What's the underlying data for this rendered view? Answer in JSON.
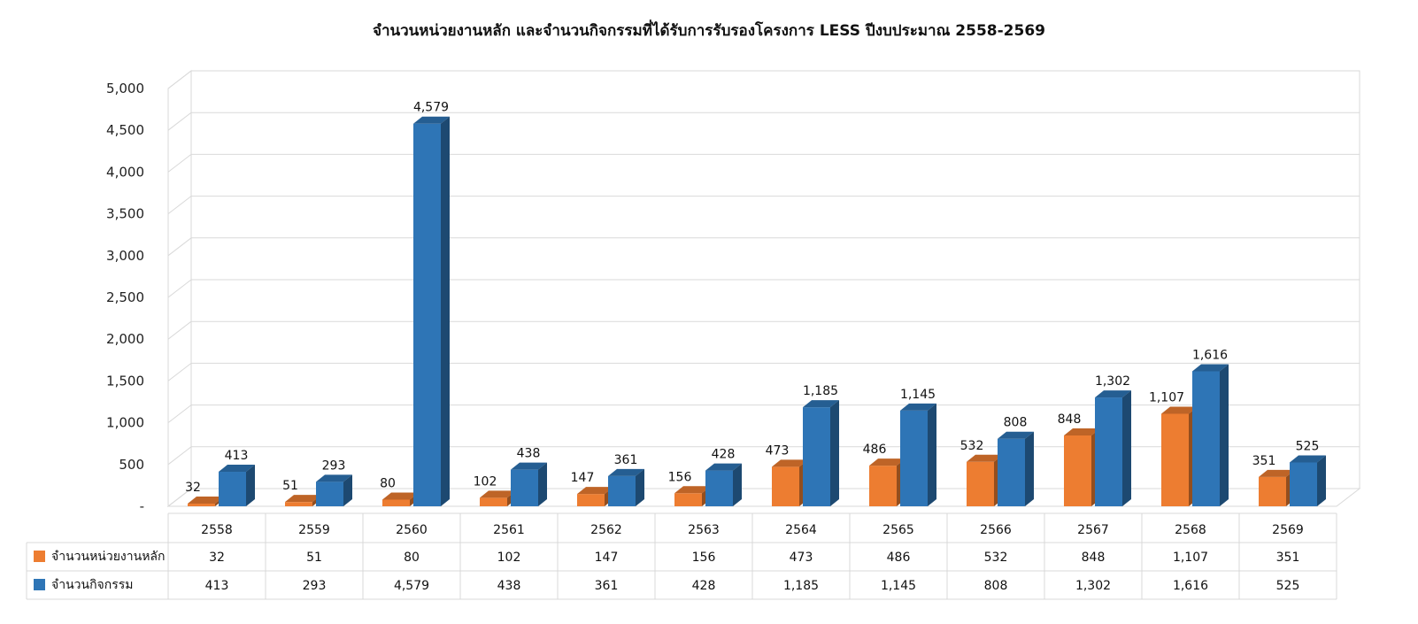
{
  "chart_data": {
    "type": "bar",
    "title": "จำนวนหน่วยงานหลัก และจำนวนกิจกรรมที่ได้รับการรับรองโครงการ LESS ปีงบประมาณ 2558-2569",
    "categories": [
      "2558",
      "2559",
      "2560",
      "2561",
      "2562",
      "2563",
      "2564",
      "2565",
      "2566",
      "2567",
      "2568",
      "2569"
    ],
    "series": [
      {
        "name": "จำนวนหน่วยงานหลัก",
        "color": "#ED7D31",
        "values": [
          32,
          51,
          80,
          102,
          147,
          156,
          473,
          486,
          532,
          848,
          1107,
          351
        ],
        "labels": [
          "32",
          "51",
          "80",
          "102",
          "147",
          "156",
          "473",
          "486",
          "532",
          "848",
          "1,107",
          "351"
        ]
      },
      {
        "name": "จำนวนกิจกรรม",
        "color": "#2E75B6",
        "values": [
          413,
          293,
          4579,
          438,
          361,
          428,
          1185,
          1145,
          808,
          1302,
          1616,
          525
        ],
        "labels": [
          "413",
          "293",
          "4,579",
          "438",
          "361",
          "428",
          "1,185",
          "1,145",
          "808",
          "1,302",
          "1,616",
          "525"
        ]
      }
    ],
    "y_ticks": [
      "-",
      "500",
      "1,000",
      "1,500",
      "2,000",
      "2,500",
      "3,000",
      "3,500",
      "4,000",
      "4,500",
      "5,000"
    ],
    "ylim": [
      0,
      5000
    ],
    "grid": true,
    "data_table": true,
    "style": "3d-clustered-column"
  }
}
